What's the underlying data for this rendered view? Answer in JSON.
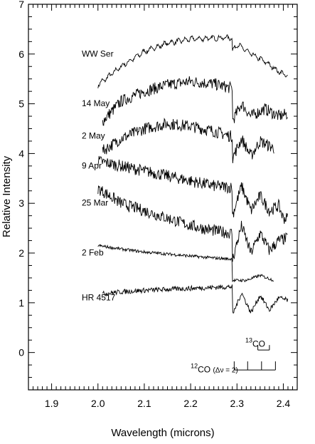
{
  "chart_data": {
    "type": "line",
    "xlabel": "Wavelength (microns)",
    "ylabel": "Relative Intensity",
    "xlim": [
      1.85,
      2.43
    ],
    "ylim": [
      -0.75,
      7
    ],
    "x_ticks": [
      "1.9",
      "2.0",
      "2.1",
      "2.2",
      "2.3",
      "2.4"
    ],
    "y_ticks": [
      "0",
      "1",
      "2",
      "3",
      "4",
      "5",
      "6",
      "7"
    ],
    "series": [
      {
        "name": "WW Ser",
        "label_x": 1.965,
        "label_y": 5.95,
        "x_start": 2.0,
        "x_end": 2.41,
        "break_at": 2.29,
        "pre": [
          [
            2.0,
            5.38
          ],
          [
            2.05,
            5.75
          ],
          [
            2.1,
            6.05
          ],
          [
            2.15,
            6.22
          ],
          [
            2.2,
            6.3
          ],
          [
            2.25,
            6.32
          ],
          [
            2.285,
            6.33
          ]
        ],
        "post": [
          [
            2.29,
            6.05
          ],
          [
            2.3,
            6.2
          ],
          [
            2.33,
            6.0
          ],
          [
            2.36,
            5.85
          ],
          [
            2.39,
            5.65
          ],
          [
            2.41,
            5.55
          ]
        ]
      },
      {
        "name": "14 May",
        "label_x": 1.965,
        "label_y": 4.95,
        "x_start": 2.01,
        "x_end": 2.41,
        "break_at": 2.29,
        "pre": [
          [
            2.01,
            4.65
          ],
          [
            2.05,
            5.05
          ],
          [
            2.1,
            5.25
          ],
          [
            2.15,
            5.38
          ],
          [
            2.2,
            5.45
          ],
          [
            2.25,
            5.4
          ],
          [
            2.285,
            5.32
          ]
        ],
        "post": [
          [
            2.29,
            4.65
          ],
          [
            2.31,
            5.0
          ],
          [
            2.33,
            4.75
          ],
          [
            2.36,
            4.9
          ],
          [
            2.39,
            4.75
          ],
          [
            2.41,
            4.8
          ]
        ]
      },
      {
        "name": "2 May",
        "label_x": 1.965,
        "label_y": 4.3,
        "x_start": 2.01,
        "x_end": 2.38,
        "break_at": 2.29,
        "pre": [
          [
            2.01,
            4.05
          ],
          [
            2.05,
            4.3
          ],
          [
            2.1,
            4.5
          ],
          [
            2.15,
            4.6
          ],
          [
            2.2,
            4.55
          ],
          [
            2.25,
            4.45
          ],
          [
            2.285,
            4.35
          ]
        ],
        "post": [
          [
            2.29,
            3.9
          ],
          [
            2.31,
            4.3
          ],
          [
            2.33,
            3.95
          ],
          [
            2.35,
            4.25
          ],
          [
            2.38,
            4.1
          ]
        ]
      },
      {
        "name": "9 Apr",
        "label_x": 1.965,
        "label_y": 3.7,
        "x_start": 2.0,
        "x_end": 2.41,
        "break_at": 2.29,
        "pre": [
          [
            2.0,
            3.85
          ],
          [
            2.05,
            3.75
          ],
          [
            2.1,
            3.65
          ],
          [
            2.15,
            3.55
          ],
          [
            2.2,
            3.45
          ],
          [
            2.25,
            3.35
          ],
          [
            2.285,
            3.32
          ]
        ],
        "post": [
          [
            2.29,
            2.75
          ],
          [
            2.31,
            3.35
          ],
          [
            2.33,
            2.85
          ],
          [
            2.35,
            3.15
          ],
          [
            2.37,
            2.85
          ],
          [
            2.39,
            2.95
          ],
          [
            2.4,
            2.7
          ]
        ]
      },
      {
        "name": "25 Mar",
        "label_x": 1.965,
        "label_y": 2.95,
        "x_start": 2.0,
        "x_end": 2.41,
        "break_at": 2.29,
        "pre": [
          [
            2.0,
            3.3
          ],
          [
            2.05,
            3.0
          ],
          [
            2.1,
            2.85
          ],
          [
            2.15,
            2.7
          ],
          [
            2.2,
            2.55
          ],
          [
            2.25,
            2.45
          ],
          [
            2.285,
            2.4
          ]
        ],
        "post": [
          [
            2.29,
            1.85
          ],
          [
            2.31,
            2.55
          ],
          [
            2.33,
            2.0
          ],
          [
            2.35,
            2.4
          ],
          [
            2.37,
            2.05
          ],
          [
            2.39,
            2.25
          ],
          [
            2.41,
            2.3
          ]
        ]
      },
      {
        "name": "2 Feb",
        "label_x": 1.965,
        "label_y": 1.95,
        "x_start": 2.0,
        "x_end": 2.38,
        "break_at": 2.29,
        "pre": [
          [
            2.0,
            2.15
          ],
          [
            2.05,
            2.08
          ],
          [
            2.1,
            2.02
          ],
          [
            2.15,
            1.98
          ],
          [
            2.2,
            1.94
          ],
          [
            2.25,
            1.9
          ],
          [
            2.285,
            1.88
          ]
        ],
        "post": [
          [
            2.29,
            1.45
          ],
          [
            2.32,
            1.45
          ],
          [
            2.35,
            1.55
          ],
          [
            2.38,
            1.45
          ]
        ]
      },
      {
        "name": "HR 4517",
        "label_x": 1.965,
        "label_y": 1.05,
        "x_start": 2.01,
        "x_end": 2.41,
        "break_at": 2.29,
        "pre": [
          [
            2.01,
            1.18
          ],
          [
            2.05,
            1.22
          ],
          [
            2.1,
            1.25
          ],
          [
            2.15,
            1.27
          ],
          [
            2.2,
            1.29
          ],
          [
            2.25,
            1.31
          ],
          [
            2.285,
            1.32
          ]
        ],
        "post": [
          [
            2.29,
            0.75
          ],
          [
            2.31,
            1.2
          ],
          [
            2.33,
            0.8
          ],
          [
            2.35,
            1.15
          ],
          [
            2.37,
            0.85
          ],
          [
            2.39,
            1.1
          ],
          [
            2.41,
            1.05
          ]
        ]
      }
    ],
    "co_markers": {
      "co13_label": "13CO",
      "co13_label_sup": "13",
      "co13_label_main": "CO",
      "co12_label_sup": "12",
      "co12_label_main": "CO",
      "co12_label_suffix": "(Δν = 2)",
      "co13_ticks": [
        2.345,
        2.37
      ],
      "co12_ticks": [
        2.294,
        2.323,
        2.353,
        2.383
      ]
    }
  }
}
